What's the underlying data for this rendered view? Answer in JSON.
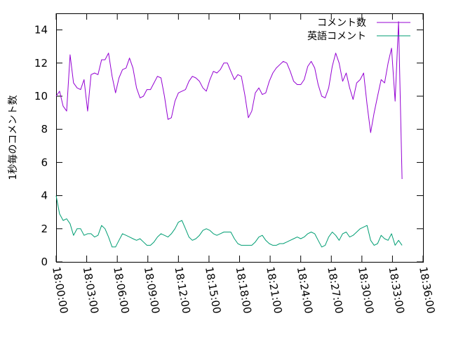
{
  "chart_data": {
    "type": "line",
    "ylabel": "1秒毎のコメント数",
    "xlabel": "",
    "x_range": [
      "18:00:00",
      "18:36:00"
    ],
    "xlim": [
      0,
      36
    ],
    "ylim": [
      0,
      15
    ],
    "x_ticks": [
      "18:00:00",
      "18:03:00",
      "18:06:00",
      "18:09:00",
      "18:12:00",
      "18:15:00",
      "18:18:00",
      "18:21:00",
      "18:24:00",
      "18:27:00",
      "18:30:00",
      "18:33:00",
      "18:36:00"
    ],
    "y_ticks": [
      0,
      2,
      4,
      6,
      8,
      10,
      12,
      14
    ],
    "grid": false,
    "legend_position": "top-right",
    "series": [
      {
        "name": "コメント数",
        "color": "#9400d3",
        "points": [
          [
            0.0,
            10.0
          ],
          [
            0.34,
            10.3
          ],
          [
            0.69,
            9.4
          ],
          [
            1.03,
            9.1
          ],
          [
            1.37,
            12.5
          ],
          [
            1.71,
            10.8
          ],
          [
            2.06,
            10.5
          ],
          [
            2.4,
            10.4
          ],
          [
            2.74,
            11.0
          ],
          [
            3.09,
            9.1
          ],
          [
            3.43,
            11.3
          ],
          [
            3.77,
            11.4
          ],
          [
            4.11,
            11.3
          ],
          [
            4.46,
            12.2
          ],
          [
            4.8,
            12.2
          ],
          [
            5.14,
            12.6
          ],
          [
            5.49,
            11.2
          ],
          [
            5.83,
            10.2
          ],
          [
            6.17,
            11.1
          ],
          [
            6.51,
            11.6
          ],
          [
            6.86,
            11.7
          ],
          [
            7.2,
            12.3
          ],
          [
            7.54,
            11.7
          ],
          [
            7.89,
            10.5
          ],
          [
            8.23,
            9.9
          ],
          [
            8.57,
            10.0
          ],
          [
            8.91,
            10.4
          ],
          [
            9.26,
            10.4
          ],
          [
            9.6,
            10.8
          ],
          [
            9.94,
            11.2
          ],
          [
            10.29,
            11.1
          ],
          [
            10.63,
            10.0
          ],
          [
            10.97,
            8.6
          ],
          [
            11.31,
            8.7
          ],
          [
            11.66,
            9.7
          ],
          [
            12.0,
            10.2
          ],
          [
            12.34,
            10.3
          ],
          [
            12.69,
            10.4
          ],
          [
            13.03,
            10.9
          ],
          [
            13.37,
            11.2
          ],
          [
            13.71,
            11.1
          ],
          [
            14.06,
            10.9
          ],
          [
            14.4,
            10.5
          ],
          [
            14.74,
            10.3
          ],
          [
            15.09,
            11.0
          ],
          [
            15.43,
            11.5
          ],
          [
            15.77,
            11.4
          ],
          [
            16.11,
            11.6
          ],
          [
            16.46,
            12.0
          ],
          [
            16.8,
            12.0
          ],
          [
            17.14,
            11.5
          ],
          [
            17.49,
            11.0
          ],
          [
            17.83,
            11.3
          ],
          [
            18.17,
            11.2
          ],
          [
            18.51,
            10.1
          ],
          [
            18.86,
            8.7
          ],
          [
            19.2,
            9.1
          ],
          [
            19.54,
            10.2
          ],
          [
            19.89,
            10.5
          ],
          [
            20.23,
            10.1
          ],
          [
            20.57,
            10.2
          ],
          [
            20.91,
            10.9
          ],
          [
            21.26,
            11.4
          ],
          [
            21.6,
            11.7
          ],
          [
            21.94,
            11.9
          ],
          [
            22.29,
            12.1
          ],
          [
            22.63,
            12.0
          ],
          [
            22.97,
            11.5
          ],
          [
            23.31,
            10.9
          ],
          [
            23.66,
            10.7
          ],
          [
            24.0,
            10.7
          ],
          [
            24.34,
            11.0
          ],
          [
            24.69,
            11.8
          ],
          [
            25.03,
            12.1
          ],
          [
            25.37,
            11.7
          ],
          [
            25.71,
            10.7
          ],
          [
            26.06,
            10.0
          ],
          [
            26.4,
            9.9
          ],
          [
            26.74,
            10.5
          ],
          [
            27.09,
            11.8
          ],
          [
            27.43,
            12.6
          ],
          [
            27.77,
            12.0
          ],
          [
            28.11,
            10.9
          ],
          [
            28.46,
            11.4
          ],
          [
            28.8,
            10.5
          ],
          [
            29.14,
            9.8
          ],
          [
            29.49,
            10.8
          ],
          [
            29.83,
            11.0
          ],
          [
            30.17,
            11.4
          ],
          [
            30.51,
            9.5
          ],
          [
            30.86,
            7.8
          ],
          [
            31.2,
            9.0
          ],
          [
            31.54,
            10.0
          ],
          [
            31.89,
            11.0
          ],
          [
            32.23,
            10.8
          ],
          [
            32.57,
            12.0
          ],
          [
            32.91,
            12.9
          ],
          [
            33.26,
            9.7
          ],
          [
            33.6,
            14.5
          ],
          [
            33.94,
            5.0
          ]
        ]
      },
      {
        "name": "英語コメント",
        "color": "#009e73",
        "points": [
          [
            0.0,
            4.0
          ],
          [
            0.34,
            2.9
          ],
          [
            0.69,
            2.5
          ],
          [
            1.03,
            2.6
          ],
          [
            1.37,
            2.3
          ],
          [
            1.71,
            1.6
          ],
          [
            2.06,
            2.0
          ],
          [
            2.4,
            2.0
          ],
          [
            2.74,
            1.6
          ],
          [
            3.09,
            1.7
          ],
          [
            3.43,
            1.7
          ],
          [
            3.77,
            1.5
          ],
          [
            4.11,
            1.6
          ],
          [
            4.46,
            2.2
          ],
          [
            4.8,
            2.0
          ],
          [
            5.14,
            1.5
          ],
          [
            5.49,
            0.9
          ],
          [
            5.83,
            0.9
          ],
          [
            6.17,
            1.3
          ],
          [
            6.51,
            1.7
          ],
          [
            6.86,
            1.6
          ],
          [
            7.2,
            1.5
          ],
          [
            7.54,
            1.4
          ],
          [
            7.89,
            1.3
          ],
          [
            8.23,
            1.4
          ],
          [
            8.57,
            1.2
          ],
          [
            8.91,
            1.0
          ],
          [
            9.26,
            1.0
          ],
          [
            9.6,
            1.2
          ],
          [
            9.94,
            1.5
          ],
          [
            10.29,
            1.7
          ],
          [
            10.63,
            1.6
          ],
          [
            10.97,
            1.5
          ],
          [
            11.31,
            1.7
          ],
          [
            11.66,
            2.0
          ],
          [
            12.0,
            2.4
          ],
          [
            12.34,
            2.5
          ],
          [
            12.69,
            2.0
          ],
          [
            13.03,
            1.5
          ],
          [
            13.37,
            1.3
          ],
          [
            13.71,
            1.4
          ],
          [
            14.06,
            1.6
          ],
          [
            14.4,
            1.9
          ],
          [
            14.74,
            2.0
          ],
          [
            15.09,
            1.9
          ],
          [
            15.43,
            1.7
          ],
          [
            15.77,
            1.6
          ],
          [
            16.11,
            1.7
          ],
          [
            16.46,
            1.8
          ],
          [
            16.8,
            1.8
          ],
          [
            17.14,
            1.8
          ],
          [
            17.49,
            1.4
          ],
          [
            17.83,
            1.1
          ],
          [
            18.17,
            1.0
          ],
          [
            18.51,
            1.0
          ],
          [
            18.86,
            1.0
          ],
          [
            19.2,
            1.0
          ],
          [
            19.54,
            1.2
          ],
          [
            19.89,
            1.5
          ],
          [
            20.23,
            1.6
          ],
          [
            20.57,
            1.3
          ],
          [
            20.91,
            1.1
          ],
          [
            21.26,
            1.0
          ],
          [
            21.6,
            1.0
          ],
          [
            21.94,
            1.1
          ],
          [
            22.29,
            1.1
          ],
          [
            22.63,
            1.2
          ],
          [
            22.97,
            1.3
          ],
          [
            23.31,
            1.4
          ],
          [
            23.66,
            1.5
          ],
          [
            24.0,
            1.4
          ],
          [
            24.34,
            1.5
          ],
          [
            24.69,
            1.7
          ],
          [
            25.03,
            1.8
          ],
          [
            25.37,
            1.7
          ],
          [
            25.71,
            1.3
          ],
          [
            26.06,
            0.9
          ],
          [
            26.4,
            1.0
          ],
          [
            26.74,
            1.5
          ],
          [
            27.09,
            1.8
          ],
          [
            27.43,
            1.6
          ],
          [
            27.77,
            1.3
          ],
          [
            28.11,
            1.7
          ],
          [
            28.46,
            1.8
          ],
          [
            28.8,
            1.5
          ],
          [
            29.14,
            1.6
          ],
          [
            29.49,
            1.8
          ],
          [
            29.83,
            2.0
          ],
          [
            30.17,
            2.1
          ],
          [
            30.51,
            2.2
          ],
          [
            30.86,
            1.3
          ],
          [
            31.2,
            1.0
          ],
          [
            31.54,
            1.1
          ],
          [
            31.89,
            1.6
          ],
          [
            32.23,
            1.4
          ],
          [
            32.57,
            1.3
          ],
          [
            32.91,
            1.7
          ],
          [
            33.26,
            1.0
          ],
          [
            33.6,
            1.3
          ],
          [
            33.94,
            1.0
          ]
        ]
      }
    ]
  }
}
